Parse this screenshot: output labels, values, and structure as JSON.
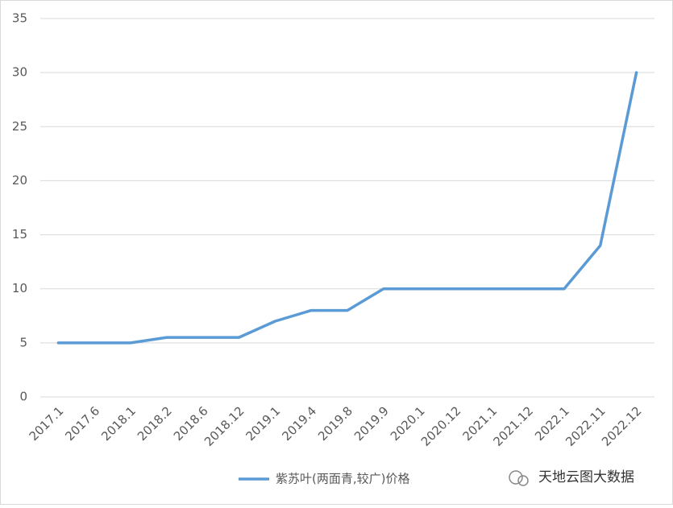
{
  "chart_data": {
    "type": "line",
    "categories": [
      "2017.1",
      "2017.6",
      "2018.1",
      "2018.2",
      "2018.6",
      "2018.12",
      "2019.1",
      "2019.4",
      "2019.8",
      "2019.9",
      "2020.1",
      "2020.12",
      "2021.1",
      "2021.12",
      "2022.1",
      "2022.11",
      "2022.12"
    ],
    "series": [
      {
        "name": "紫苏叶(两面青,较广)价格",
        "color": "#5b9bd5",
        "values": [
          5,
          5,
          5,
          5.5,
          5.5,
          5.5,
          7,
          8,
          8,
          10,
          10,
          10,
          10,
          10,
          10,
          14,
          30
        ]
      }
    ],
    "ylim": [
      0,
      35
    ],
    "yticks": [
      0,
      5,
      10,
      15,
      20,
      25,
      30,
      35
    ],
    "grid": true,
    "legend": "bottom",
    "watermark": "天地云图大数据"
  }
}
